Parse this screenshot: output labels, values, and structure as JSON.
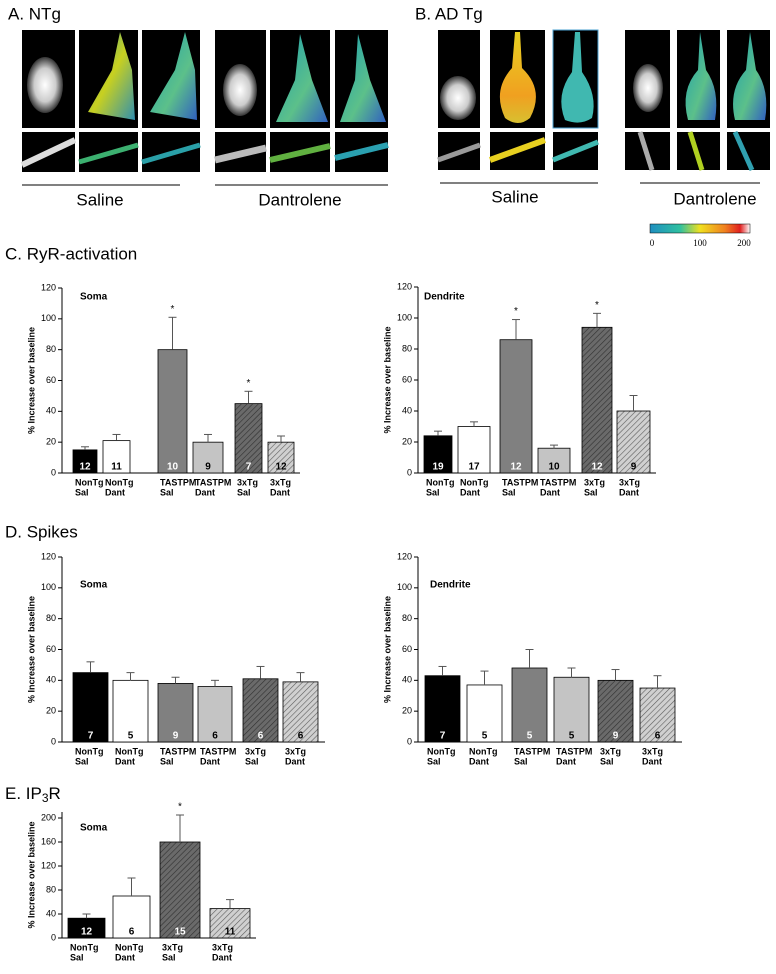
{
  "panels": {
    "A": {
      "label": "A.  NTg",
      "groups": [
        "Saline",
        "Dantrolene"
      ]
    },
    "B": {
      "label": "B.  AD Tg",
      "groups": [
        "Saline",
        "Dantrolene"
      ]
    },
    "colorbar": {
      "ticks": [
        0,
        100,
        200
      ]
    }
  },
  "sections": {
    "C": "C.  RyR-activation",
    "D": "D.  Spikes",
    "E": {
      "main": "E.  IP",
      "sub": "3",
      "rest": "R"
    }
  },
  "chart_data": [
    {
      "type": "bar",
      "title": "Soma",
      "ylabel": "% Increase over baseline",
      "ylim": [
        0,
        120
      ],
      "yticks": [
        0,
        20,
        40,
        60,
        80,
        100,
        120
      ],
      "categories": [
        [
          "NonTg",
          "Sal"
        ],
        [
          "NonTg",
          "Dant"
        ],
        [
          "TASTPM",
          "Sal"
        ],
        [
          "TASTPM",
          "Dant"
        ],
        [
          "3xTg",
          "Sal"
        ],
        [
          "3xTg",
          "Dant"
        ]
      ],
      "values": [
        15,
        21,
        80,
        20,
        45,
        20
      ],
      "errors": [
        2,
        4,
        21,
        5,
        8,
        4
      ],
      "n": [
        12,
        11,
        10,
        9,
        7,
        12
      ],
      "significance": [
        null,
        null,
        "*",
        null,
        "*",
        null
      ],
      "colors": [
        "#000000",
        "#ffffff",
        "#808080",
        "#c4c4c4",
        "#6a6a6a",
        "#d0d0d0"
      ],
      "hatch": [
        false,
        false,
        false,
        false,
        true,
        true
      ]
    },
    {
      "type": "bar",
      "title": "Dendrite",
      "ylabel": "% Increase over baseline",
      "ylim": [
        0,
        120
      ],
      "yticks": [
        0,
        20,
        40,
        60,
        80,
        100,
        120
      ],
      "categories": [
        [
          "NonTg",
          "Sal"
        ],
        [
          "NonTg",
          "Dant"
        ],
        [
          "TASTPM",
          "Sal"
        ],
        [
          "TASTPM",
          "Dant"
        ],
        [
          "3xTg",
          "Sal"
        ],
        [
          "3xTg",
          "Dant"
        ]
      ],
      "values": [
        24,
        30,
        86,
        16,
        94,
        40
      ],
      "errors": [
        3,
        3,
        13,
        2,
        9,
        10
      ],
      "n": [
        19,
        17,
        12,
        10,
        12,
        9
      ],
      "significance": [
        null,
        null,
        "*",
        null,
        "*",
        null
      ],
      "colors": [
        "#000000",
        "#ffffff",
        "#808080",
        "#c4c4c4",
        "#6a6a6a",
        "#d0d0d0"
      ],
      "hatch": [
        false,
        false,
        false,
        false,
        true,
        true
      ]
    },
    {
      "type": "bar",
      "title": "Soma",
      "ylabel": "% Increase over baseline",
      "ylim": [
        0,
        120
      ],
      "yticks": [
        0,
        20,
        40,
        60,
        80,
        100,
        120
      ],
      "categories": [
        [
          "NonTg",
          "Sal"
        ],
        [
          "NonTg",
          "Dant"
        ],
        [
          "TASTPM",
          "Sal"
        ],
        [
          "TASTPM",
          "Dant"
        ],
        [
          "3xTg",
          "Sal"
        ],
        [
          "3xTg",
          "Dant"
        ]
      ],
      "values": [
        45,
        40,
        38,
        36,
        41,
        39
      ],
      "errors": [
        7,
        5,
        4,
        4,
        8,
        6
      ],
      "n": [
        7,
        5,
        9,
        6,
        6,
        6
      ],
      "colors": [
        "#000000",
        "#ffffff",
        "#808080",
        "#c4c4c4",
        "#6a6a6a",
        "#d0d0d0"
      ],
      "hatch": [
        false,
        false,
        false,
        false,
        true,
        true
      ]
    },
    {
      "type": "bar",
      "title": "Dendrite",
      "ylabel": "% Increase over baseline",
      "ylim": [
        0,
        120
      ],
      "yticks": [
        0,
        20,
        40,
        60,
        80,
        100,
        120
      ],
      "categories": [
        [
          "NonTg",
          "Sal"
        ],
        [
          "NonTg",
          "Dant"
        ],
        [
          "TASTPM",
          "Sal"
        ],
        [
          "TASTPM",
          "Dant"
        ],
        [
          "3xTg",
          "Sal"
        ],
        [
          "3xTg",
          "Dant"
        ]
      ],
      "values": [
        43,
        37,
        48,
        42,
        40,
        35
      ],
      "errors": [
        6,
        9,
        12,
        6,
        7,
        8
      ],
      "n": [
        7,
        5,
        5,
        5,
        9,
        6
      ],
      "colors": [
        "#000000",
        "#ffffff",
        "#808080",
        "#c4c4c4",
        "#6a6a6a",
        "#d0d0d0"
      ],
      "hatch": [
        false,
        false,
        false,
        false,
        true,
        true
      ]
    },
    {
      "type": "bar",
      "title": "Soma",
      "ylabel": "% Increase over baseline",
      "ylim": [
        0,
        210
      ],
      "yticks": [
        0,
        40,
        80,
        120,
        160,
        200
      ],
      "categories": [
        [
          "NonTg",
          "Sal"
        ],
        [
          "NonTg",
          "Dant"
        ],
        [
          "3xTg",
          "Sal"
        ],
        [
          "3xTg",
          "Dant"
        ]
      ],
      "values": [
        33,
        70,
        160,
        49
      ],
      "errors": [
        7,
        30,
        45,
        15
      ],
      "n": [
        12,
        6,
        15,
        11
      ],
      "significance": [
        null,
        null,
        "*",
        null
      ],
      "colors": [
        "#000000",
        "#ffffff",
        "#6a6a6a",
        "#d0d0d0"
      ],
      "hatch": [
        false,
        false,
        true,
        true
      ]
    }
  ]
}
